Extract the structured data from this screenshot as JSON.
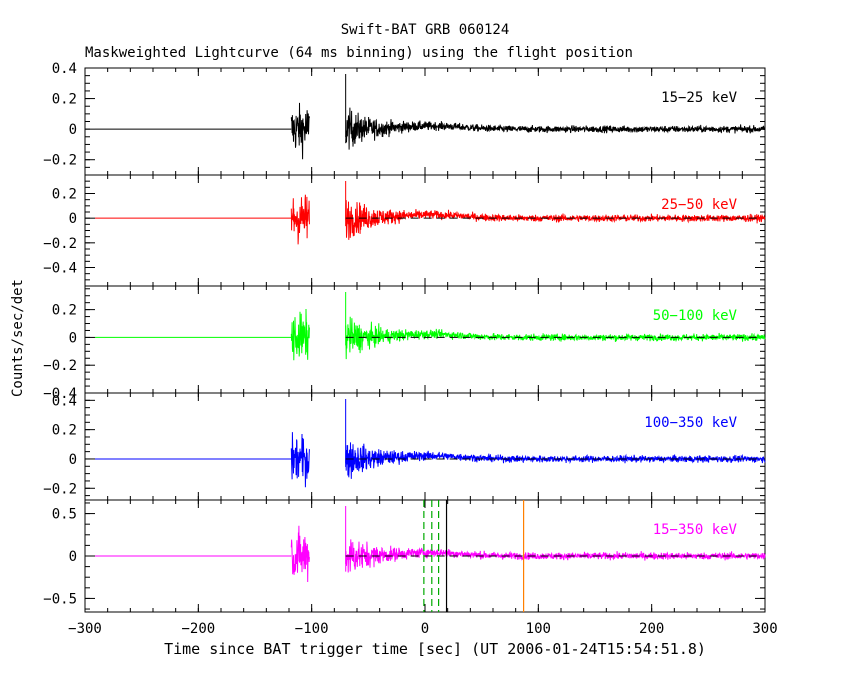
{
  "chart_data": {
    "type": "line",
    "title": "Swift-BAT GRB 060124",
    "subtitle": "Maskweighted Lightcurve (64 ms binning) using the flight position",
    "xlabel": "Time since BAT trigger time [sec] (UT 2006-01-24T15:54:51.8)",
    "ylabel": "Counts/sec/det",
    "xlim": [
      -300,
      300
    ],
    "x_ticks": [
      "-300",
      "-200",
      "-100",
      "0",
      "100",
      "200",
      "300"
    ],
    "panels": [
      {
        "name": "15-25 keV",
        "color": "#000000",
        "ylim": [
          -0.3,
          0.4
        ],
        "y_ticks": [
          -0.2,
          0,
          0.2,
          0.4
        ],
        "y_tick_labels": [
          "-0.2",
          "0",
          "0.2",
          "0.4"
        ],
        "dashed_zero": false
      },
      {
        "name": "25-50 keV",
        "color": "#ff0000",
        "ylim": [
          -0.55,
          0.35
        ],
        "y_ticks": [
          -0.4,
          -0.2,
          0,
          0.2
        ],
        "y_tick_labels": [
          "-0.4",
          "-0.2",
          "0",
          "0.2"
        ],
        "dashed_zero": true
      },
      {
        "name": "50-100 keV",
        "color": "#00ff00",
        "ylim": [
          -0.4,
          0.37
        ],
        "y_ticks": [
          -0.4,
          -0.2,
          0,
          0.2
        ],
        "y_tick_labels": [
          "-0.4",
          "-0.2",
          "0",
          "0.2"
        ],
        "dashed_zero": true
      },
      {
        "name": "100-350 keV",
        "color": "#0000ff",
        "ylim": [
          -0.28,
          0.45
        ],
        "y_ticks": [
          -0.2,
          0,
          0.2,
          0.4
        ],
        "y_tick_labels": [
          "-0.2",
          "0",
          "0.2",
          "0.4"
        ],
        "dashed_zero": true
      },
      {
        "name": "15-350 keV",
        "color": "#ff00ff",
        "ylim": [
          -0.66,
          0.66
        ],
        "y_ticks": [
          -0.5,
          0,
          0.5
        ],
        "y_tick_labels": [
          "-0.5",
          "0",
          "0.5"
        ],
        "dashed_zero": true
      }
    ],
    "signal_segments": [
      {
        "x_start": -118,
        "x_end": -102
      },
      {
        "x_start": -70,
        "x_end": 300
      }
    ],
    "markers": [
      {
        "x": -1,
        "style": "dashed",
        "color": "#00aa00"
      },
      {
        "x": 6,
        "style": "dashed",
        "color": "#00aa00"
      },
      {
        "x": 12,
        "style": "dashed",
        "color": "#00aa00"
      },
      {
        "x": 19,
        "style": "solid",
        "color": "#000000"
      },
      {
        "x": 87,
        "style": "solid",
        "color": "#ff7f00"
      }
    ]
  }
}
